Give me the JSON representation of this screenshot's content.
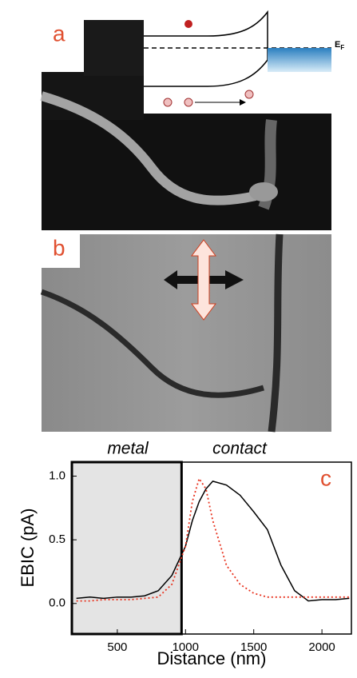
{
  "panels": {
    "a": {
      "label": "a",
      "fermi_label": {
        "main": "E",
        "sub": "F"
      }
    },
    "b": {
      "label": "b"
    }
  },
  "chart_data": {
    "type": "line",
    "panel_label": "c",
    "annotations": [
      "metal",
      "contact"
    ],
    "xlabel": "Distance (nm)",
    "ylabel": "EBIC (pA)",
    "xlim": [
      167,
      2216
    ],
    "ylim": [
      -0.24,
      1.11
    ],
    "xticks": [
      500,
      1000,
      1500,
      2000
    ],
    "yticks": [
      {
        "value": 0,
        "label": "0.0"
      },
      {
        "value": 0.5,
        "label": "0.5"
      },
      {
        "value": 1,
        "label": "1.0"
      }
    ],
    "shade_end": 971,
    "shade_color": "#e4e4e4",
    "x": [
      200,
      300,
      400,
      500,
      600,
      700,
      800,
      900,
      1000,
      1050,
      1100,
      1150,
      1200,
      1300,
      1400,
      1500,
      1600,
      1700,
      1800,
      1900,
      2000,
      2100,
      2200
    ],
    "series": [
      {
        "color": "#000000",
        "dash": false,
        "values": [
          0.04,
          0.05,
          0.04,
          0.05,
          0.05,
          0.06,
          0.1,
          0.22,
          0.45,
          0.65,
          0.8,
          0.9,
          0.96,
          0.93,
          0.85,
          0.72,
          0.58,
          0.3,
          0.1,
          0.02,
          0.03,
          0.03,
          0.04
        ]
      },
      {
        "color": "#e8321e",
        "dash": true,
        "values": [
          0.02,
          0.02,
          0.03,
          0.03,
          0.03,
          0.04,
          0.05,
          0.15,
          0.45,
          0.8,
          0.98,
          0.9,
          0.65,
          0.3,
          0.15,
          0.08,
          0.05,
          0.05,
          0.05,
          0.05,
          0.05,
          0.05,
          0.05
        ]
      }
    ]
  }
}
